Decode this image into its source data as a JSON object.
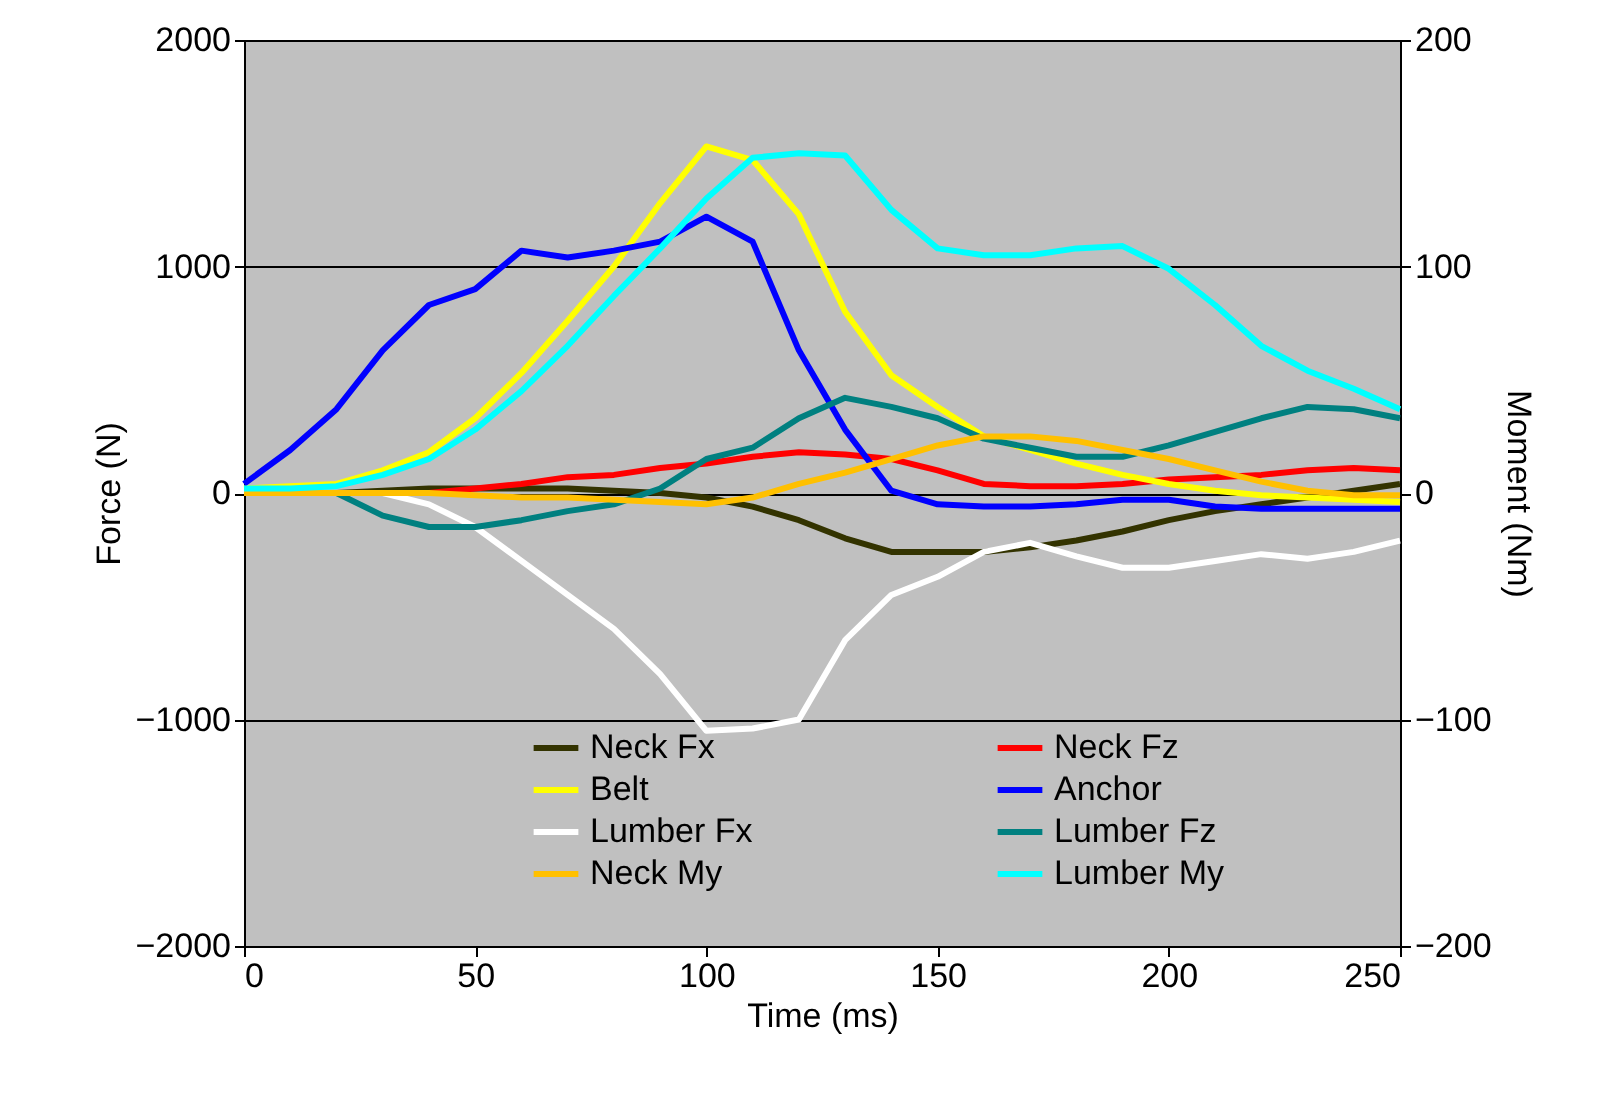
{
  "chart_data": {
    "type": "line",
    "xlabel": "Time (ms)",
    "ylabel": "Force (N)",
    "y2label": "Moment (Nm)",
    "x": [
      0,
      10,
      20,
      30,
      40,
      50,
      60,
      70,
      80,
      90,
      100,
      110,
      120,
      130,
      140,
      150,
      160,
      170,
      180,
      190,
      200,
      210,
      220,
      230,
      240,
      250
    ],
    "xlim": [
      0,
      250
    ],
    "xticks": [
      0,
      50,
      100,
      150,
      200,
      250
    ],
    "ylim": [
      -2000,
      2000
    ],
    "yticks": [
      -2000,
      -1000,
      0,
      1000,
      2000
    ],
    "y2lim": [
      -200,
      200
    ],
    "y2ticks": [
      -200,
      -100,
      0,
      100,
      200
    ],
    "grid": "y",
    "legend": "bottom",
    "marker": "none",
    "line_style": "solid",
    "series": [
      {
        "name": "Neck Fx",
        "color": "#333300",
        "values": [
          0,
          0,
          0,
          10,
          20,
          20,
          20,
          20,
          10,
          0,
          -20,
          -60,
          -120,
          -200,
          -260,
          -260,
          -260,
          -240,
          -210,
          -170,
          -120,
          -80,
          -50,
          -20,
          10,
          40
        ]
      },
      {
        "name": "Neck Fz",
        "color": "#ff0000",
        "values": [
          null,
          null,
          null,
          0,
          0,
          20,
          40,
          70,
          80,
          110,
          130,
          160,
          180,
          170,
          150,
          100,
          40,
          30,
          30,
          40,
          60,
          70,
          80,
          100,
          110,
          100
        ]
      },
      {
        "name": "Belt",
        "color": "#ffff00",
        "values": [
          20,
          30,
          40,
          100,
          180,
          330,
          530,
          760,
          1000,
          1280,
          1530,
          1470,
          1230,
          800,
          520,
          380,
          250,
          190,
          130,
          80,
          40,
          10,
          -10,
          -20,
          -30,
          -40
        ]
      },
      {
        "name": "Anchor",
        "color": "#0000ff",
        "values": [
          40,
          190,
          370,
          630,
          830,
          900,
          1070,
          1040,
          1070,
          1110,
          1220,
          1110,
          630,
          280,
          10,
          -50,
          -60,
          -60,
          -50,
          -30,
          -30,
          -60,
          -70,
          -70,
          -70,
          -70
        ]
      },
      {
        "name": "Lumber Fx",
        "color": "#ffffff",
        "values": [
          0,
          0,
          0,
          0,
          -50,
          -150,
          -300,
          -450,
          -600,
          -800,
          -1050,
          -1040,
          -1000,
          -650,
          -450,
          -370,
          -260,
          -220,
          -280,
          -330,
          -330,
          -300,
          -270,
          -290,
          -260,
          -210
        ]
      },
      {
        "name": "Lumber Fz",
        "color": "#008080",
        "values": [
          0,
          0,
          0,
          -100,
          -150,
          -150,
          -120,
          -80,
          -50,
          20,
          150,
          200,
          330,
          420,
          380,
          330,
          240,
          200,
          160,
          160,
          210,
          270,
          330,
          380,
          370,
          330
        ]
      },
      {
        "name": "Neck My",
        "color": "#ffc000",
        "axis": "y2",
        "values": [
          0,
          0,
          0,
          0,
          0,
          -1,
          -2,
          -2,
          -3,
          -4,
          -5,
          -2,
          4,
          9,
          15,
          21,
          25,
          25,
          23,
          19,
          15,
          10,
          5,
          1,
          -1,
          -1
        ]
      },
      {
        "name": "Lumber My",
        "color": "#00ffff",
        "axis": "y2",
        "values": [
          2,
          2,
          3,
          8,
          15,
          28,
          45,
          65,
          87,
          108,
          130,
          148,
          150,
          149,
          125,
          108,
          105,
          105,
          108,
          109,
          99,
          83,
          65,
          54,
          46,
          37
        ]
      }
    ]
  }
}
